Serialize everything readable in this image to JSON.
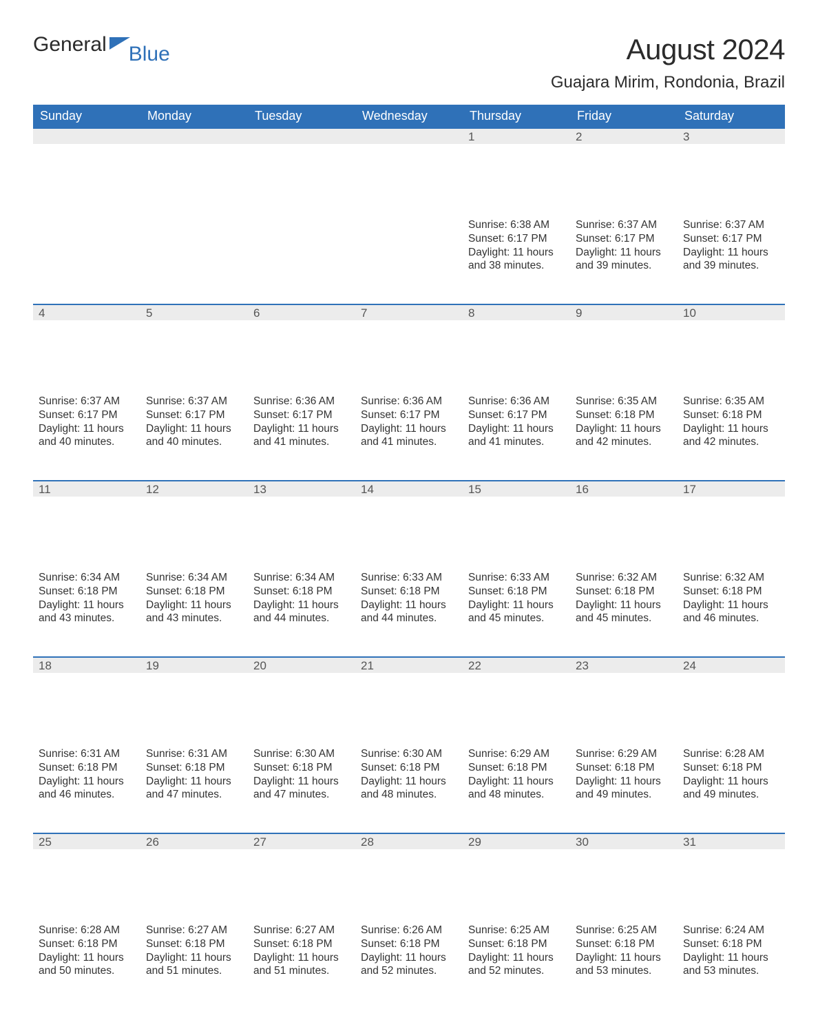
{
  "brand": {
    "part1": "General",
    "part2": "Blue",
    "accent_color": "#2f71b8",
    "text_color": "#2b2b2b"
  },
  "title": "August 2024",
  "location": "Guajara Mirim, Rondonia, Brazil",
  "colors": {
    "header_bg": "#2f71b8",
    "header_text": "#ffffff",
    "daynum_bg": "#ececec",
    "daynum_border": "#2f71b8",
    "body_text": "#333333",
    "page_bg": "#ffffff"
  },
  "typography": {
    "title_fontsize": 42,
    "location_fontsize": 24,
    "header_fontsize": 18,
    "daynum_fontsize": 17,
    "body_fontsize": 15.5
  },
  "weekdays": [
    "Sunday",
    "Monday",
    "Tuesday",
    "Wednesday",
    "Thursday",
    "Friday",
    "Saturday"
  ],
  "weeks": [
    [
      null,
      null,
      null,
      null,
      {
        "n": "1",
        "sr": "Sunrise: 6:38 AM",
        "ss": "Sunset: 6:17 PM",
        "dl1": "Daylight: 11 hours",
        "dl2": "and 38 minutes."
      },
      {
        "n": "2",
        "sr": "Sunrise: 6:37 AM",
        "ss": "Sunset: 6:17 PM",
        "dl1": "Daylight: 11 hours",
        "dl2": "and 39 minutes."
      },
      {
        "n": "3",
        "sr": "Sunrise: 6:37 AM",
        "ss": "Sunset: 6:17 PM",
        "dl1": "Daylight: 11 hours",
        "dl2": "and 39 minutes."
      }
    ],
    [
      {
        "n": "4",
        "sr": "Sunrise: 6:37 AM",
        "ss": "Sunset: 6:17 PM",
        "dl1": "Daylight: 11 hours",
        "dl2": "and 40 minutes."
      },
      {
        "n": "5",
        "sr": "Sunrise: 6:37 AM",
        "ss": "Sunset: 6:17 PM",
        "dl1": "Daylight: 11 hours",
        "dl2": "and 40 minutes."
      },
      {
        "n": "6",
        "sr": "Sunrise: 6:36 AM",
        "ss": "Sunset: 6:17 PM",
        "dl1": "Daylight: 11 hours",
        "dl2": "and 41 minutes."
      },
      {
        "n": "7",
        "sr": "Sunrise: 6:36 AM",
        "ss": "Sunset: 6:17 PM",
        "dl1": "Daylight: 11 hours",
        "dl2": "and 41 minutes."
      },
      {
        "n": "8",
        "sr": "Sunrise: 6:36 AM",
        "ss": "Sunset: 6:17 PM",
        "dl1": "Daylight: 11 hours",
        "dl2": "and 41 minutes."
      },
      {
        "n": "9",
        "sr": "Sunrise: 6:35 AM",
        "ss": "Sunset: 6:18 PM",
        "dl1": "Daylight: 11 hours",
        "dl2": "and 42 minutes."
      },
      {
        "n": "10",
        "sr": "Sunrise: 6:35 AM",
        "ss": "Sunset: 6:18 PM",
        "dl1": "Daylight: 11 hours",
        "dl2": "and 42 minutes."
      }
    ],
    [
      {
        "n": "11",
        "sr": "Sunrise: 6:34 AM",
        "ss": "Sunset: 6:18 PM",
        "dl1": "Daylight: 11 hours",
        "dl2": "and 43 minutes."
      },
      {
        "n": "12",
        "sr": "Sunrise: 6:34 AM",
        "ss": "Sunset: 6:18 PM",
        "dl1": "Daylight: 11 hours",
        "dl2": "and 43 minutes."
      },
      {
        "n": "13",
        "sr": "Sunrise: 6:34 AM",
        "ss": "Sunset: 6:18 PM",
        "dl1": "Daylight: 11 hours",
        "dl2": "and 44 minutes."
      },
      {
        "n": "14",
        "sr": "Sunrise: 6:33 AM",
        "ss": "Sunset: 6:18 PM",
        "dl1": "Daylight: 11 hours",
        "dl2": "and 44 minutes."
      },
      {
        "n": "15",
        "sr": "Sunrise: 6:33 AM",
        "ss": "Sunset: 6:18 PM",
        "dl1": "Daylight: 11 hours",
        "dl2": "and 45 minutes."
      },
      {
        "n": "16",
        "sr": "Sunrise: 6:32 AM",
        "ss": "Sunset: 6:18 PM",
        "dl1": "Daylight: 11 hours",
        "dl2": "and 45 minutes."
      },
      {
        "n": "17",
        "sr": "Sunrise: 6:32 AM",
        "ss": "Sunset: 6:18 PM",
        "dl1": "Daylight: 11 hours",
        "dl2": "and 46 minutes."
      }
    ],
    [
      {
        "n": "18",
        "sr": "Sunrise: 6:31 AM",
        "ss": "Sunset: 6:18 PM",
        "dl1": "Daylight: 11 hours",
        "dl2": "and 46 minutes."
      },
      {
        "n": "19",
        "sr": "Sunrise: 6:31 AM",
        "ss": "Sunset: 6:18 PM",
        "dl1": "Daylight: 11 hours",
        "dl2": "and 47 minutes."
      },
      {
        "n": "20",
        "sr": "Sunrise: 6:30 AM",
        "ss": "Sunset: 6:18 PM",
        "dl1": "Daylight: 11 hours",
        "dl2": "and 47 minutes."
      },
      {
        "n": "21",
        "sr": "Sunrise: 6:30 AM",
        "ss": "Sunset: 6:18 PM",
        "dl1": "Daylight: 11 hours",
        "dl2": "and 48 minutes."
      },
      {
        "n": "22",
        "sr": "Sunrise: 6:29 AM",
        "ss": "Sunset: 6:18 PM",
        "dl1": "Daylight: 11 hours",
        "dl2": "and 48 minutes."
      },
      {
        "n": "23",
        "sr": "Sunrise: 6:29 AM",
        "ss": "Sunset: 6:18 PM",
        "dl1": "Daylight: 11 hours",
        "dl2": "and 49 minutes."
      },
      {
        "n": "24",
        "sr": "Sunrise: 6:28 AM",
        "ss": "Sunset: 6:18 PM",
        "dl1": "Daylight: 11 hours",
        "dl2": "and 49 minutes."
      }
    ],
    [
      {
        "n": "25",
        "sr": "Sunrise: 6:28 AM",
        "ss": "Sunset: 6:18 PM",
        "dl1": "Daylight: 11 hours",
        "dl2": "and 50 minutes."
      },
      {
        "n": "26",
        "sr": "Sunrise: 6:27 AM",
        "ss": "Sunset: 6:18 PM",
        "dl1": "Daylight: 11 hours",
        "dl2": "and 51 minutes."
      },
      {
        "n": "27",
        "sr": "Sunrise: 6:27 AM",
        "ss": "Sunset: 6:18 PM",
        "dl1": "Daylight: 11 hours",
        "dl2": "and 51 minutes."
      },
      {
        "n": "28",
        "sr": "Sunrise: 6:26 AM",
        "ss": "Sunset: 6:18 PM",
        "dl1": "Daylight: 11 hours",
        "dl2": "and 52 minutes."
      },
      {
        "n": "29",
        "sr": "Sunrise: 6:25 AM",
        "ss": "Sunset: 6:18 PM",
        "dl1": "Daylight: 11 hours",
        "dl2": "and 52 minutes."
      },
      {
        "n": "30",
        "sr": "Sunrise: 6:25 AM",
        "ss": "Sunset: 6:18 PM",
        "dl1": "Daylight: 11 hours",
        "dl2": "and 53 minutes."
      },
      {
        "n": "31",
        "sr": "Sunrise: 6:24 AM",
        "ss": "Sunset: 6:18 PM",
        "dl1": "Daylight: 11 hours",
        "dl2": "and 53 minutes."
      }
    ]
  ]
}
